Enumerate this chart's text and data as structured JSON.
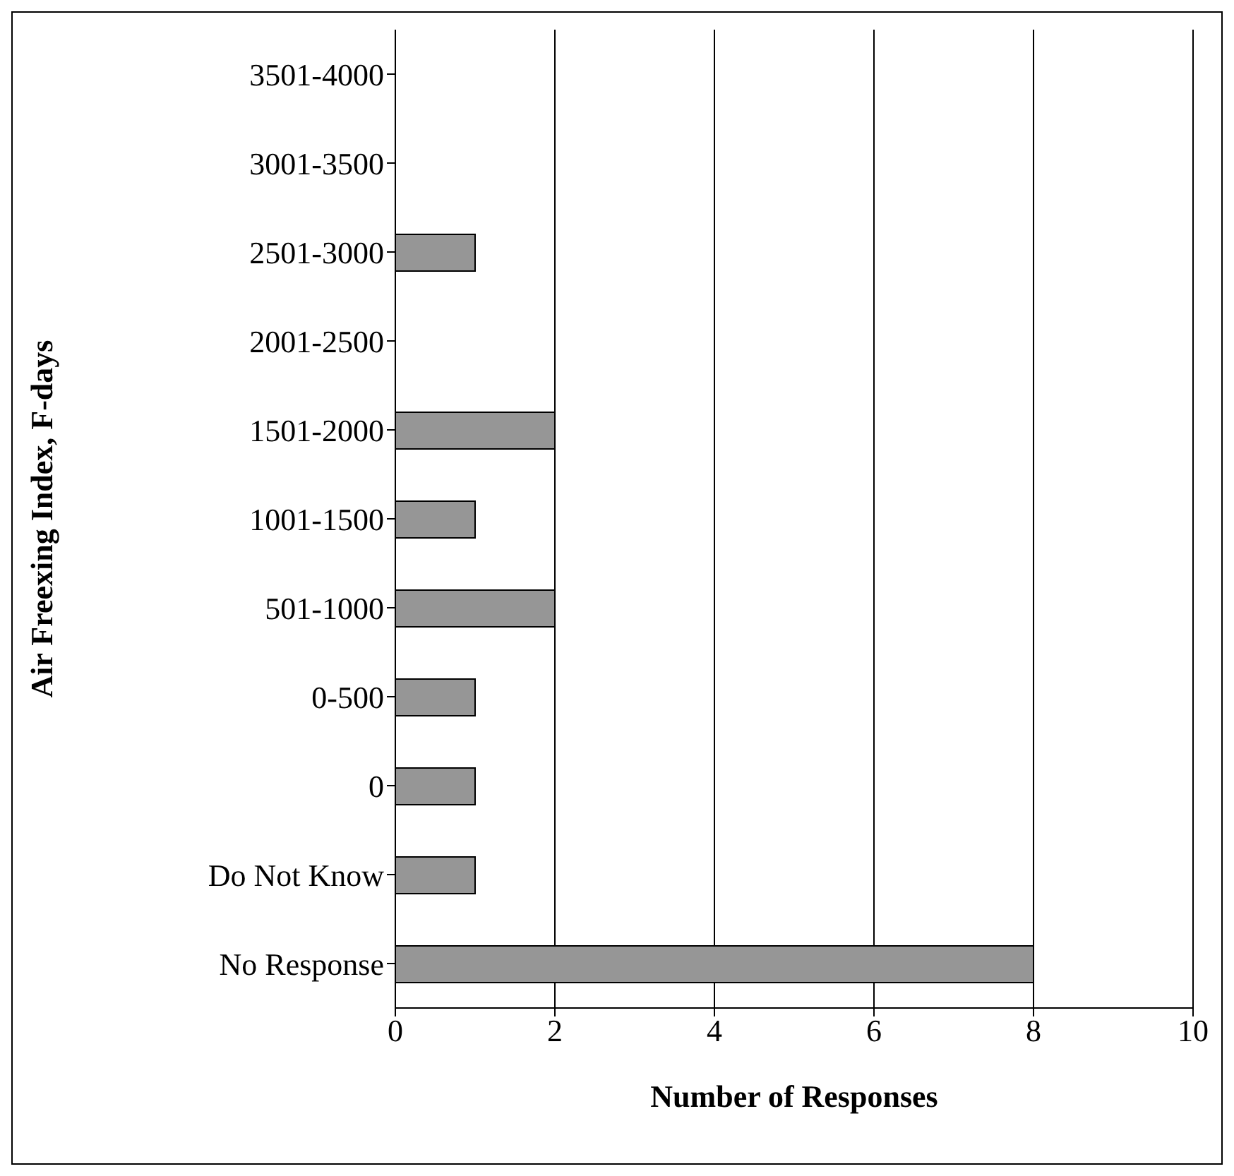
{
  "chart_data": {
    "type": "bar",
    "orientation": "horizontal",
    "xlabel": "Number of Responses",
    "ylabel": "Air Freexing Index, F-days",
    "categories": [
      "3501-4000",
      "3001-3500",
      "2501-3000",
      "2001-2500",
      "1501-2000",
      "1001-1500",
      "501-1000",
      "0-500",
      "0",
      "Do Not Know",
      "No Response"
    ],
    "values": [
      0,
      0,
      1,
      0,
      2,
      1,
      2,
      1,
      1,
      1,
      8
    ],
    "color": "#969696",
    "xlim": [
      0,
      10
    ],
    "xticks": [
      0,
      2,
      4,
      6,
      8,
      10
    ],
    "grid": "x",
    "legend": false
  }
}
